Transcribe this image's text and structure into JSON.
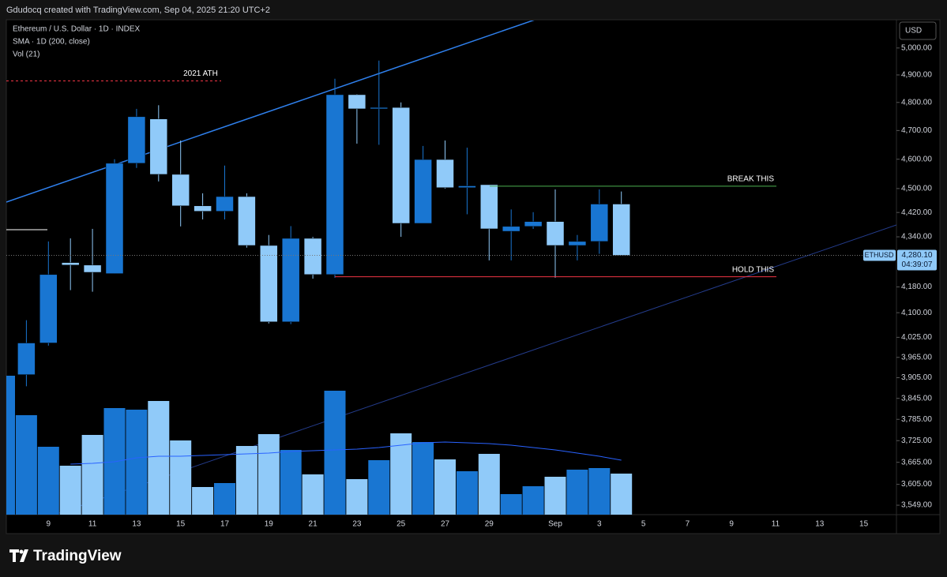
{
  "header": "Gdudocq created with TradingView.com, Sep 04, 2025 21:20 UTC+2",
  "footer_brand": "TradingView",
  "chart_data": {
    "type": "candlestick",
    "title": "Ethereum / U.S. Dollar · 1D · INDEX",
    "indicators": [
      "SMA · 1D (200, close)",
      "Vol (21)"
    ],
    "currency": "USD",
    "symbol": "ETHUSD",
    "countdown": "04:39:07",
    "last_price": {
      "value": 4280.1,
      "label": "4,280.10"
    },
    "log_scale": true,
    "up_color": "#1976d2",
    "down_color": "#90caf9",
    "volume_ma_color": "#2962ff",
    "categories": [
      null,
      null,
      "9",
      null,
      "11",
      null,
      "13",
      null,
      "15",
      null,
      "17",
      null,
      "19",
      null,
      "21",
      null,
      "23",
      null,
      "25",
      null,
      "27",
      null,
      "29",
      null,
      null,
      "Sep",
      null,
      "3",
      null,
      "5",
      null,
      "7",
      null,
      "9",
      null,
      "11",
      null,
      "13",
      null,
      "15"
    ],
    "open": [
      null,
      3914,
      4008,
      4257,
      4249,
      4222,
      4586,
      4741,
      4548,
      4442,
      4424,
      4473,
      4312,
      4072,
      4335,
      4219,
      4828,
      4777,
      4782,
      4384,
      4599,
      4503,
      4513,
      4358,
      4374,
      4390,
      4312,
      4325,
      4448,
      null,
      null,
      null,
      null,
      null,
      null,
      null,
      null,
      null,
      null,
      null
    ],
    "high": [
      null,
      4077,
      4325,
      4335,
      4366,
      4600,
      4777,
      4790,
      4665,
      4484,
      4578,
      4484,
      4346,
      4375,
      4340,
      4886,
      4830,
      4953,
      4800,
      4646,
      4665,
      4640,
      4513,
      4430,
      4421,
      4497,
      4346,
      4497,
      4490,
      null,
      null,
      null,
      null,
      null,
      null,
      null,
      null,
      null,
      null,
      null
    ],
    "low": [
      null,
      3880,
      4000,
      4170,
      4165,
      4222,
      4570,
      4524,
      4374,
      4397,
      4397,
      4305,
      4067,
      4065,
      4206,
      4209,
      4654,
      4650,
      4340,
      4384,
      4500,
      4414,
      4264,
      4264,
      4366,
      4209,
      4264,
      4285,
      4280.1,
      null,
      null,
      null,
      null,
      null,
      null,
      null,
      null,
      null,
      null,
      null
    ],
    "close": [
      null,
      4008,
      4219,
      4249,
      4226,
      4586,
      4749,
      4548,
      4442,
      4424,
      4473,
      4312,
      4072,
      4335,
      4219,
      4828,
      4777,
      4782,
      4384,
      4599,
      4503,
      4509,
      4366,
      4374,
      4390,
      4312,
      4325,
      4448,
      4280.1,
      null,
      null,
      null,
      null,
      null,
      null,
      null,
      null,
      null,
      null,
      null
    ],
    "volume": [
      176,
      126,
      86,
      62,
      101,
      135,
      133,
      144,
      94,
      35,
      40,
      87,
      102,
      82,
      51,
      157,
      45,
      69,
      103,
      92,
      70,
      55,
      77,
      26,
      36,
      48,
      57,
      59,
      52,
      null,
      null,
      null,
      null,
      null,
      null,
      null,
      null,
      null,
      null,
      null
    ],
    "volume_ma": [
      null,
      null,
      null,
      64,
      65,
      67,
      72,
      74,
      74,
      75,
      76,
      77,
      78,
      80,
      81,
      82,
      83,
      85,
      88,
      91,
      92,
      91,
      90,
      88,
      85,
      82,
      78,
      74,
      69,
      null,
      null,
      null,
      null,
      null,
      null,
      null,
      null,
      null,
      null,
      null
    ],
    "ylim": [
      3524,
      5098
    ],
    "yticks": [
      {
        "value": 5000,
        "label": "5,000.00"
      },
      {
        "value": 4900,
        "label": "4,900.00"
      },
      {
        "value": 4800,
        "label": "4,800.00"
      },
      {
        "value": 4700,
        "label": "4,700.00"
      },
      {
        "value": 4600,
        "label": "4,600.00"
      },
      {
        "value": 4500,
        "label": "4,500.00"
      },
      {
        "value": 4420,
        "label": "4,420.00"
      },
      {
        "value": 4340,
        "label": "4,340.00"
      },
      {
        "value": 4180,
        "label": "4,180.00"
      },
      {
        "value": 4100,
        "label": "4,100.00"
      },
      {
        "value": 4025,
        "label": "4,025.00"
      },
      {
        "value": 3965,
        "label": "3,965.00"
      },
      {
        "value": 3905,
        "label": "3,905.00"
      },
      {
        "value": 3845,
        "label": "3,845.00"
      },
      {
        "value": 3785,
        "label": "3,785.00"
      },
      {
        "value": 3725,
        "label": "3,725.00"
      },
      {
        "value": 3665,
        "label": "3,665.00"
      },
      {
        "value": 3605,
        "label": "3,605.00"
      },
      {
        "value": 3549,
        "label": "3,549.00"
      }
    ],
    "annotations": [
      {
        "label": "2021 ATH",
        "value": 4878,
        "color": "#f23645"
      },
      {
        "label": "BREAK THIS",
        "value": 4508,
        "color": "#4caf50"
      },
      {
        "label": "HOLD THIS",
        "value": 4212,
        "color": "#f23645"
      }
    ]
  }
}
